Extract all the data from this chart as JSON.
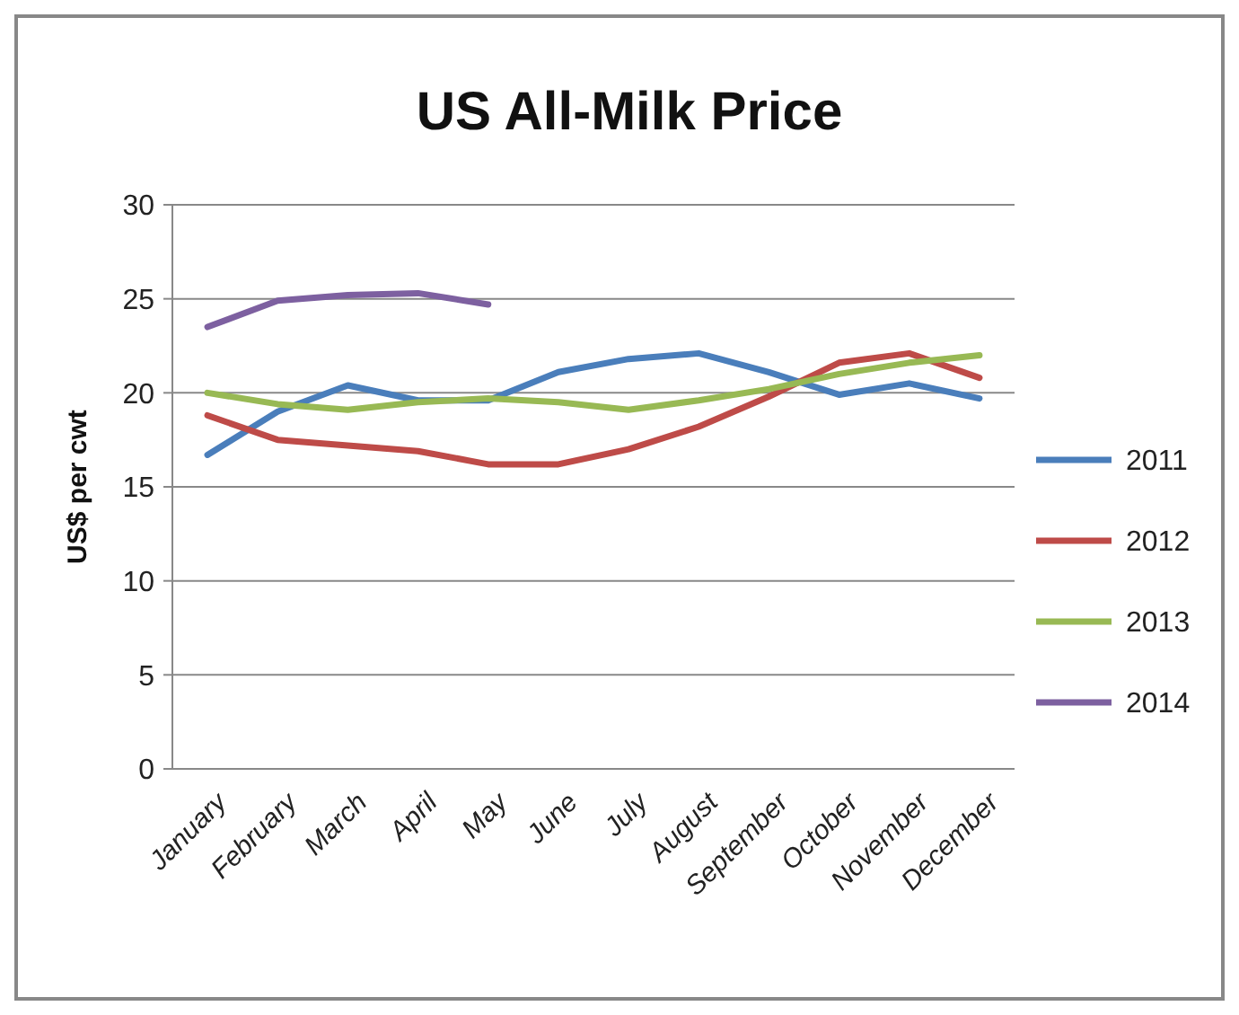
{
  "chart_data": {
    "type": "line",
    "title": "US All-Milk Price",
    "ylabel": "US$ per cwt",
    "categories": [
      "January",
      "February",
      "March",
      "April",
      "May",
      "June",
      "July",
      "August",
      "September",
      "October",
      "November",
      "December"
    ],
    "series": [
      {
        "name": "2011",
        "color": "#4a7ebb",
        "values": [
          16.7,
          19.0,
          20.4,
          19.6,
          19.6,
          21.1,
          21.8,
          22.1,
          21.1,
          19.9,
          20.5,
          19.7
        ]
      },
      {
        "name": "2012",
        "color": "#be4b48",
        "values": [
          18.8,
          17.5,
          17.2,
          16.9,
          16.2,
          16.2,
          17.0,
          18.2,
          19.8,
          21.6,
          22.1,
          20.8
        ]
      },
      {
        "name": "2013",
        "color": "#98b954",
        "values": [
          20.0,
          19.4,
          19.1,
          19.5,
          19.7,
          19.5,
          19.1,
          19.6,
          20.2,
          21.0,
          21.6,
          22.0
        ]
      },
      {
        "name": "2014",
        "color": "#7d60a0",
        "values": [
          23.5,
          24.9,
          25.2,
          25.3,
          24.7,
          null,
          null,
          null,
          null,
          null,
          null,
          null
        ]
      }
    ],
    "ylim": [
      0,
      30
    ],
    "yticks": [
      0,
      5,
      10,
      15,
      20,
      25,
      30
    ],
    "grid": "y",
    "legend": "right",
    "marker": "none",
    "line_style": "solid"
  }
}
